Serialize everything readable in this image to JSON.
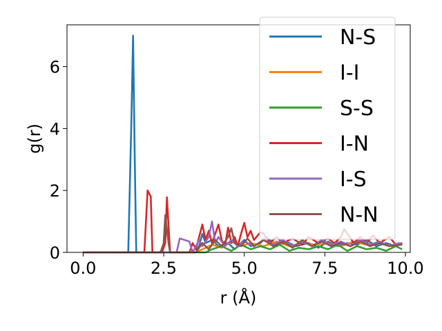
{
  "chart_data": {
    "type": "line",
    "xlabel": "r (Å)",
    "ylabel": "g(r)",
    "xlim": [
      -0.5,
      10.15
    ],
    "ylim": [
      0,
      7.35
    ],
    "x_ticks": [
      0.0,
      2.5,
      5.0,
      7.5,
      10.0
    ],
    "x_tick_labels": [
      "0.0",
      "2.5",
      "5.0",
      "7.5",
      "10.0"
    ],
    "y_ticks": [
      0,
      2,
      4,
      6
    ],
    "y_tick_labels": [
      "0",
      "2",
      "4",
      "6"
    ],
    "grid": false,
    "legend_position": "top-right",
    "series": [
      {
        "name": "N-S",
        "color": "#1f77b4",
        "points": [
          [
            0,
            0
          ],
          [
            1.4,
            0
          ],
          [
            1.5,
            4.3
          ],
          [
            1.55,
            7.0
          ],
          [
            1.6,
            3.2
          ],
          [
            1.65,
            0
          ],
          [
            2.0,
            0
          ],
          [
            3.5,
            0
          ],
          [
            3.6,
            0.2
          ],
          [
            3.7,
            0.6
          ],
          [
            3.8,
            0.3
          ],
          [
            4.0,
            0.4
          ],
          [
            4.2,
            0.2
          ],
          [
            4.5,
            0.3
          ],
          [
            4.7,
            0.1
          ],
          [
            5.0,
            0.4
          ],
          [
            5.2,
            0.2
          ],
          [
            5.5,
            0.3
          ],
          [
            5.7,
            0.5
          ],
          [
            6.0,
            0.2
          ],
          [
            6.3,
            0.35
          ],
          [
            6.6,
            0.2
          ],
          [
            7.0,
            0.3
          ],
          [
            7.3,
            0.15
          ],
          [
            7.6,
            0.35
          ],
          [
            7.9,
            0.2
          ],
          [
            8.2,
            0.3
          ],
          [
            8.5,
            0.25
          ],
          [
            8.8,
            0.4
          ],
          [
            9.1,
            0.2
          ],
          [
            9.4,
            0.3
          ],
          [
            9.7,
            0.2
          ],
          [
            9.9,
            0.3
          ]
        ]
      },
      {
        "name": "I-I",
        "color": "#ff7f0e",
        "points": [
          [
            0,
            0
          ],
          [
            3.5,
            0
          ],
          [
            3.7,
            0.1
          ],
          [
            4.0,
            0.25
          ],
          [
            4.3,
            0.15
          ],
          [
            4.6,
            0.35
          ],
          [
            4.9,
            0.2
          ],
          [
            5.2,
            0.3
          ],
          [
            5.6,
            0.2
          ],
          [
            6.0,
            0.35
          ],
          [
            6.4,
            0.2
          ],
          [
            6.8,
            0.3
          ],
          [
            7.2,
            0.25
          ],
          [
            7.6,
            0.3
          ],
          [
            8.0,
            0.2
          ],
          [
            8.4,
            0.35
          ],
          [
            8.8,
            0.25
          ],
          [
            9.2,
            0.3
          ],
          [
            9.6,
            0.2
          ],
          [
            9.9,
            0.3
          ]
        ]
      },
      {
        "name": "S-S",
        "color": "#2ca02c",
        "points": [
          [
            0,
            0
          ],
          [
            3.8,
            0
          ],
          [
            4.0,
            0.1
          ],
          [
            4.3,
            0.2
          ],
          [
            4.6,
            0.05
          ],
          [
            4.9,
            0.25
          ],
          [
            5.2,
            0.1
          ],
          [
            5.5,
            0.2
          ],
          [
            5.8,
            0.1
          ],
          [
            6.1,
            0.25
          ],
          [
            6.4,
            0.05
          ],
          [
            6.7,
            0.15
          ],
          [
            7.0,
            0.1
          ],
          [
            7.3,
            0.2
          ],
          [
            7.6,
            0.1
          ],
          [
            7.9,
            0.25
          ],
          [
            8.2,
            0.05
          ],
          [
            8.5,
            0.2
          ],
          [
            8.8,
            0.1
          ],
          [
            9.1,
            0.15
          ],
          [
            9.4,
            0.05
          ],
          [
            9.7,
            0.2
          ],
          [
            9.9,
            0.1
          ]
        ]
      },
      {
        "name": "I-N",
        "color": "#d62728",
        "points": [
          [
            0,
            0
          ],
          [
            1.9,
            0
          ],
          [
            2.0,
            2.0
          ],
          [
            2.1,
            1.8
          ],
          [
            2.15,
            0
          ],
          [
            2.45,
            0
          ],
          [
            2.55,
            0.3
          ],
          [
            2.6,
            1.78
          ],
          [
            2.7,
            0
          ],
          [
            3.3,
            0
          ],
          [
            3.4,
            0.3
          ],
          [
            3.5,
            0.1
          ],
          [
            3.6,
            0.5
          ],
          [
            3.7,
            0.9
          ],
          [
            3.8,
            0.4
          ],
          [
            3.9,
            0.7
          ],
          [
            4.0,
            0.3
          ],
          [
            4.1,
            0.6
          ],
          [
            4.2,
            0.9
          ],
          [
            4.3,
            0.4
          ],
          [
            4.4,
            0.2
          ],
          [
            4.5,
            0.8
          ],
          [
            4.6,
            0.3
          ],
          [
            4.7,
            0.5
          ],
          [
            4.8,
            0.2
          ],
          [
            4.9,
            0.6
          ],
          [
            5.0,
            0.95
          ],
          [
            5.1,
            0.5
          ],
          [
            5.2,
            0.7
          ],
          [
            5.3,
            0.4
          ],
          [
            5.5,
            0.65
          ],
          [
            5.6,
            0.6
          ],
          [
            5.8,
            0.3
          ],
          [
            6.0,
            0.5
          ],
          [
            6.2,
            0.3
          ],
          [
            6.5,
            0.45
          ],
          [
            6.8,
            0.25
          ],
          [
            7.0,
            0.5
          ],
          [
            7.3,
            0.3
          ],
          [
            7.6,
            0.45
          ],
          [
            7.8,
            0.3
          ],
          [
            8.0,
            0.5
          ],
          [
            8.1,
            0.75
          ],
          [
            8.2,
            0.6
          ],
          [
            8.4,
            0.3
          ],
          [
            8.6,
            0.5
          ],
          [
            8.8,
            0.3
          ],
          [
            9.0,
            0.55
          ],
          [
            9.2,
            0.3
          ],
          [
            9.5,
            0.5
          ],
          [
            9.7,
            0.25
          ],
          [
            9.9,
            0.3
          ]
        ]
      },
      {
        "name": "I-S",
        "color": "#9467bd",
        "points": [
          [
            0,
            0
          ],
          [
            2.9,
            0
          ],
          [
            3.0,
            0.45
          ],
          [
            3.3,
            0.35
          ],
          [
            3.4,
            0
          ],
          [
            3.6,
            0.4
          ],
          [
            3.7,
            0.2
          ],
          [
            3.9,
            0.5
          ],
          [
            4.0,
            1.0
          ],
          [
            4.1,
            0.3
          ],
          [
            4.2,
            0.5
          ],
          [
            4.4,
            0.2
          ],
          [
            4.6,
            0.4
          ],
          [
            4.8,
            0.2
          ],
          [
            5.0,
            0.35
          ],
          [
            5.3,
            0.2
          ],
          [
            5.6,
            0.4
          ],
          [
            5.9,
            0.25
          ],
          [
            6.2,
            0.4
          ],
          [
            6.5,
            0.2
          ],
          [
            6.8,
            0.35
          ],
          [
            7.1,
            0.2
          ],
          [
            7.4,
            0.4
          ],
          [
            7.7,
            0.25
          ],
          [
            8.0,
            0.35
          ],
          [
            8.3,
            0.2
          ],
          [
            8.6,
            0.4
          ],
          [
            8.9,
            0.25
          ],
          [
            9.2,
            0.35
          ],
          [
            9.5,
            0.2
          ],
          [
            9.8,
            0.3
          ],
          [
            9.9,
            0.25
          ]
        ]
      },
      {
        "name": "N-N",
        "color": "#8c564b",
        "points": [
          [
            0,
            0
          ],
          [
            2.4,
            0
          ],
          [
            2.5,
            0.3
          ],
          [
            2.55,
            1.2
          ],
          [
            2.65,
            0.3
          ],
          [
            2.7,
            0
          ],
          [
            3.5,
            0
          ],
          [
            3.7,
            0.3
          ],
          [
            3.9,
            0.1
          ],
          [
            4.1,
            0.4
          ],
          [
            4.3,
            0.2
          ],
          [
            4.5,
            0.5
          ],
          [
            4.6,
            0.78
          ],
          [
            4.7,
            0.3
          ],
          [
            4.9,
            0.2
          ],
          [
            5.1,
            0.45
          ],
          [
            5.3,
            0.2
          ],
          [
            5.6,
            0.4
          ],
          [
            5.9,
            0.2
          ],
          [
            6.2,
            0.35
          ],
          [
            6.5,
            0.15
          ],
          [
            6.8,
            0.4
          ],
          [
            7.1,
            0.2
          ],
          [
            7.4,
            0.35
          ],
          [
            7.7,
            0.2
          ],
          [
            8.0,
            0.3
          ],
          [
            8.3,
            0.2
          ],
          [
            8.6,
            0.35
          ],
          [
            8.9,
            0.2
          ],
          [
            9.2,
            0.3
          ],
          [
            9.5,
            0.2
          ],
          [
            9.9,
            0.25
          ]
        ]
      }
    ]
  }
}
